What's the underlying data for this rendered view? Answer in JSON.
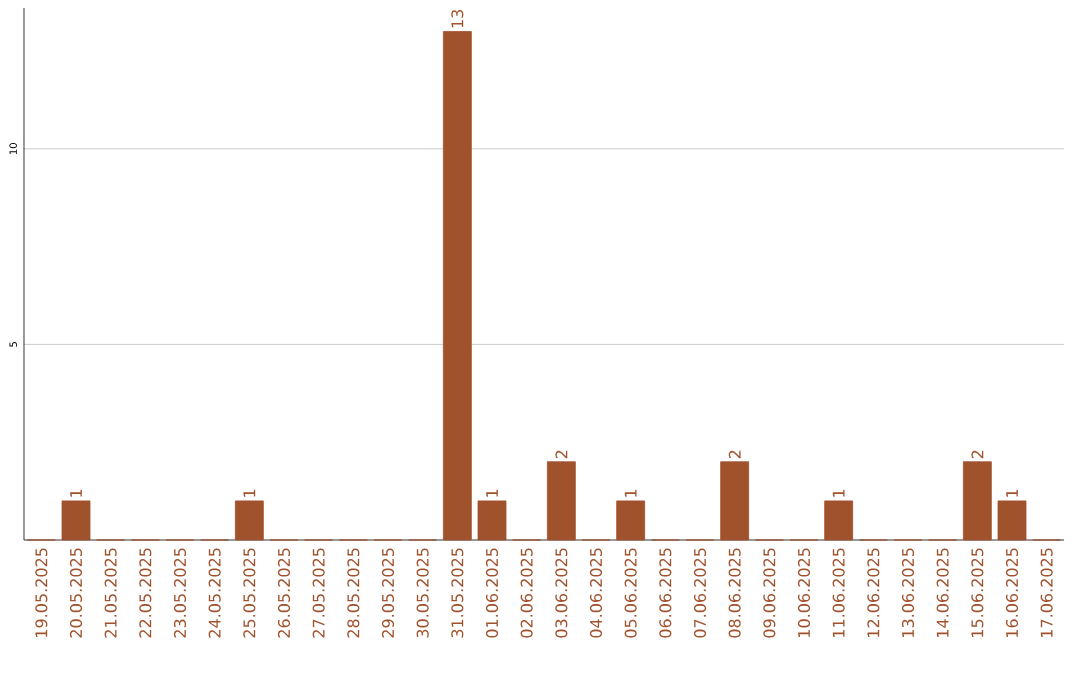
{
  "chart_data": {
    "type": "bar",
    "categories": [
      "19.05.2025",
      "20.05.2025",
      "21.05.2025",
      "22.05.2025",
      "23.05.2025",
      "24.05.2025",
      "25.05.2025",
      "26.05.2025",
      "27.05.2025",
      "28.05.2025",
      "29.05.2025",
      "30.05.2025",
      "31.05.2025",
      "01.06.2025",
      "02.06.2025",
      "03.06.2025",
      "04.06.2025",
      "05.06.2025",
      "06.06.2025",
      "07.06.2025",
      "08.06.2025",
      "09.06.2025",
      "10.06.2025",
      "11.06.2025",
      "12.06.2025",
      "13.06.2025",
      "14.06.2025",
      "15.06.2025",
      "16.06.2025",
      "17.06.2025"
    ],
    "values": [
      0,
      1,
      0,
      0,
      0,
      0,
      1,
      0,
      0,
      0,
      0,
      0,
      13,
      1,
      0,
      2,
      0,
      1,
      0,
      0,
      2,
      0,
      0,
      1,
      0,
      0,
      0,
      2,
      1,
      0
    ],
    "value_labels": [
      null,
      "1",
      null,
      null,
      null,
      null,
      "1",
      null,
      null,
      null,
      null,
      null,
      "13",
      "1",
      null,
      "2",
      null,
      "1",
      null,
      null,
      "2",
      null,
      null,
      "1",
      null,
      null,
      null,
      "2",
      "1",
      null
    ],
    "color": "#a0522d",
    "ylim": [
      0,
      13.6
    ],
    "yticks": [
      5,
      10
    ],
    "grid": "y"
  }
}
